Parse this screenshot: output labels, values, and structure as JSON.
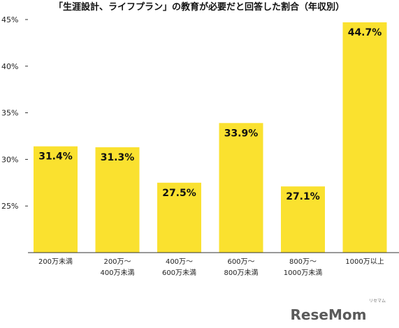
{
  "chart_data": {
    "type": "bar",
    "title": "「生涯設計、ライフプラン」の教育が必要だと回答した割合（年収別）",
    "categories": [
      [
        "200万未満"
      ],
      [
        "200万～",
        "400万未満"
      ],
      [
        "400万～",
        "600万未満"
      ],
      [
        "600万～",
        "800万未満"
      ],
      [
        "800万～",
        "1000万未満"
      ],
      [
        "1000万以上"
      ]
    ],
    "values": [
      31.4,
      31.3,
      27.5,
      33.9,
      27.1,
      44.7
    ],
    "value_labels": [
      "31.4%",
      "31.3%",
      "27.5%",
      "33.9%",
      "27.1%",
      "44.7%"
    ],
    "y_ticks": [
      25,
      30,
      35,
      40,
      45
    ],
    "y_tick_labels": [
      "25%",
      "30%",
      "35%",
      "40%",
      "45%"
    ],
    "ylim": [
      20,
      45
    ],
    "grid": false,
    "bar_color": "#FAE12F"
  },
  "watermark": {
    "text": "ReseMom",
    "sub": "リセマム"
  }
}
